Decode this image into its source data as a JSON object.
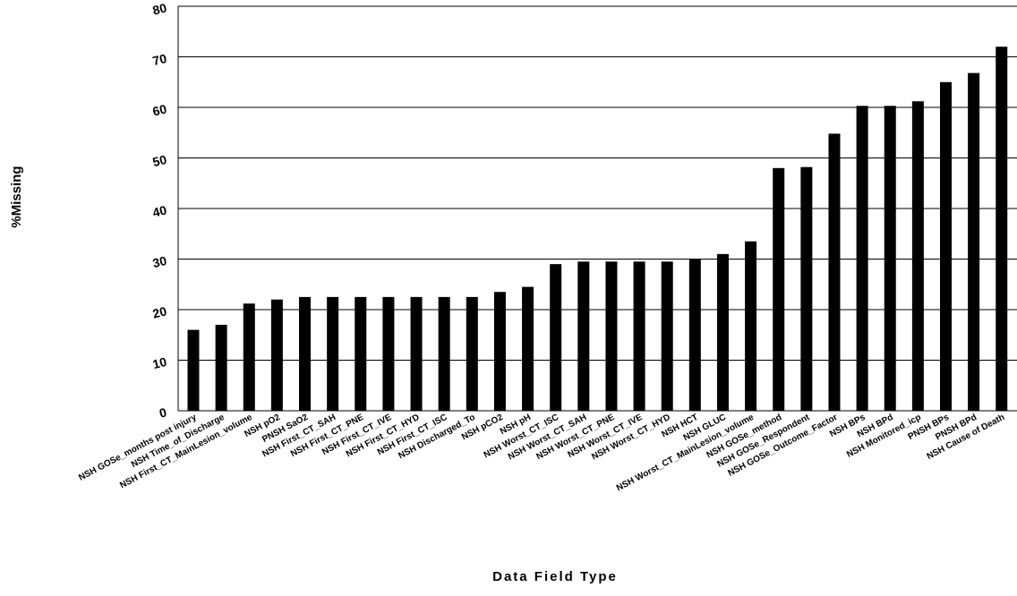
{
  "chart_data": {
    "type": "bar",
    "title": "",
    "xlabel": "Data Field Type",
    "ylabel": "%Missing",
    "ylim": [
      0,
      80
    ],
    "yticks": [
      0,
      10,
      20,
      30,
      40,
      50,
      60,
      70,
      80
    ],
    "grid": true,
    "bar_color": "#000000",
    "categories": [
      "NSH GOSe_months post injury",
      "NSH Time_of_Discharge",
      "NSH First_CT_MainLesion_volume",
      "NSH pO2",
      "PNSH SaO2",
      "NSH First_CT_SAH",
      "NSH First_CT_PNE",
      "NSH First_CT_IVE",
      "NSH First_CT_HYD",
      "NSH First_CT_ISC",
      "NSH Discharged_To",
      "NSH pCO2",
      "NSH pH",
      "NSH Worst_CT_ISC",
      "NSH Worst_CT_SAH",
      "NSH Worst_CT_PNE",
      "NSH Worst_CT_IVE",
      "NSH Worst_CT_HYD",
      "NSH HCT",
      "NSH GLUC",
      "NSH Worst_CT_MainLesion_volume",
      "NSH GOSe_method",
      "NSH GOSe_Respondent",
      "NSH GOSe_Outcome_Factor",
      "NSH BPs",
      "NSH BPd",
      "NSH Monitored_icp",
      "PNSH BPs",
      "PNSH BPd",
      "NSH Cause of Death"
    ],
    "values": [
      16,
      17,
      21.2,
      22,
      22.5,
      22.5,
      22.5,
      22.5,
      22.5,
      22.5,
      22.5,
      23.5,
      24.5,
      29,
      29.5,
      29.5,
      29.5,
      29.5,
      30,
      31,
      33.5,
      48,
      48.2,
      54.8,
      60.3,
      60.3,
      61.2,
      65,
      66.8,
      72
    ]
  }
}
